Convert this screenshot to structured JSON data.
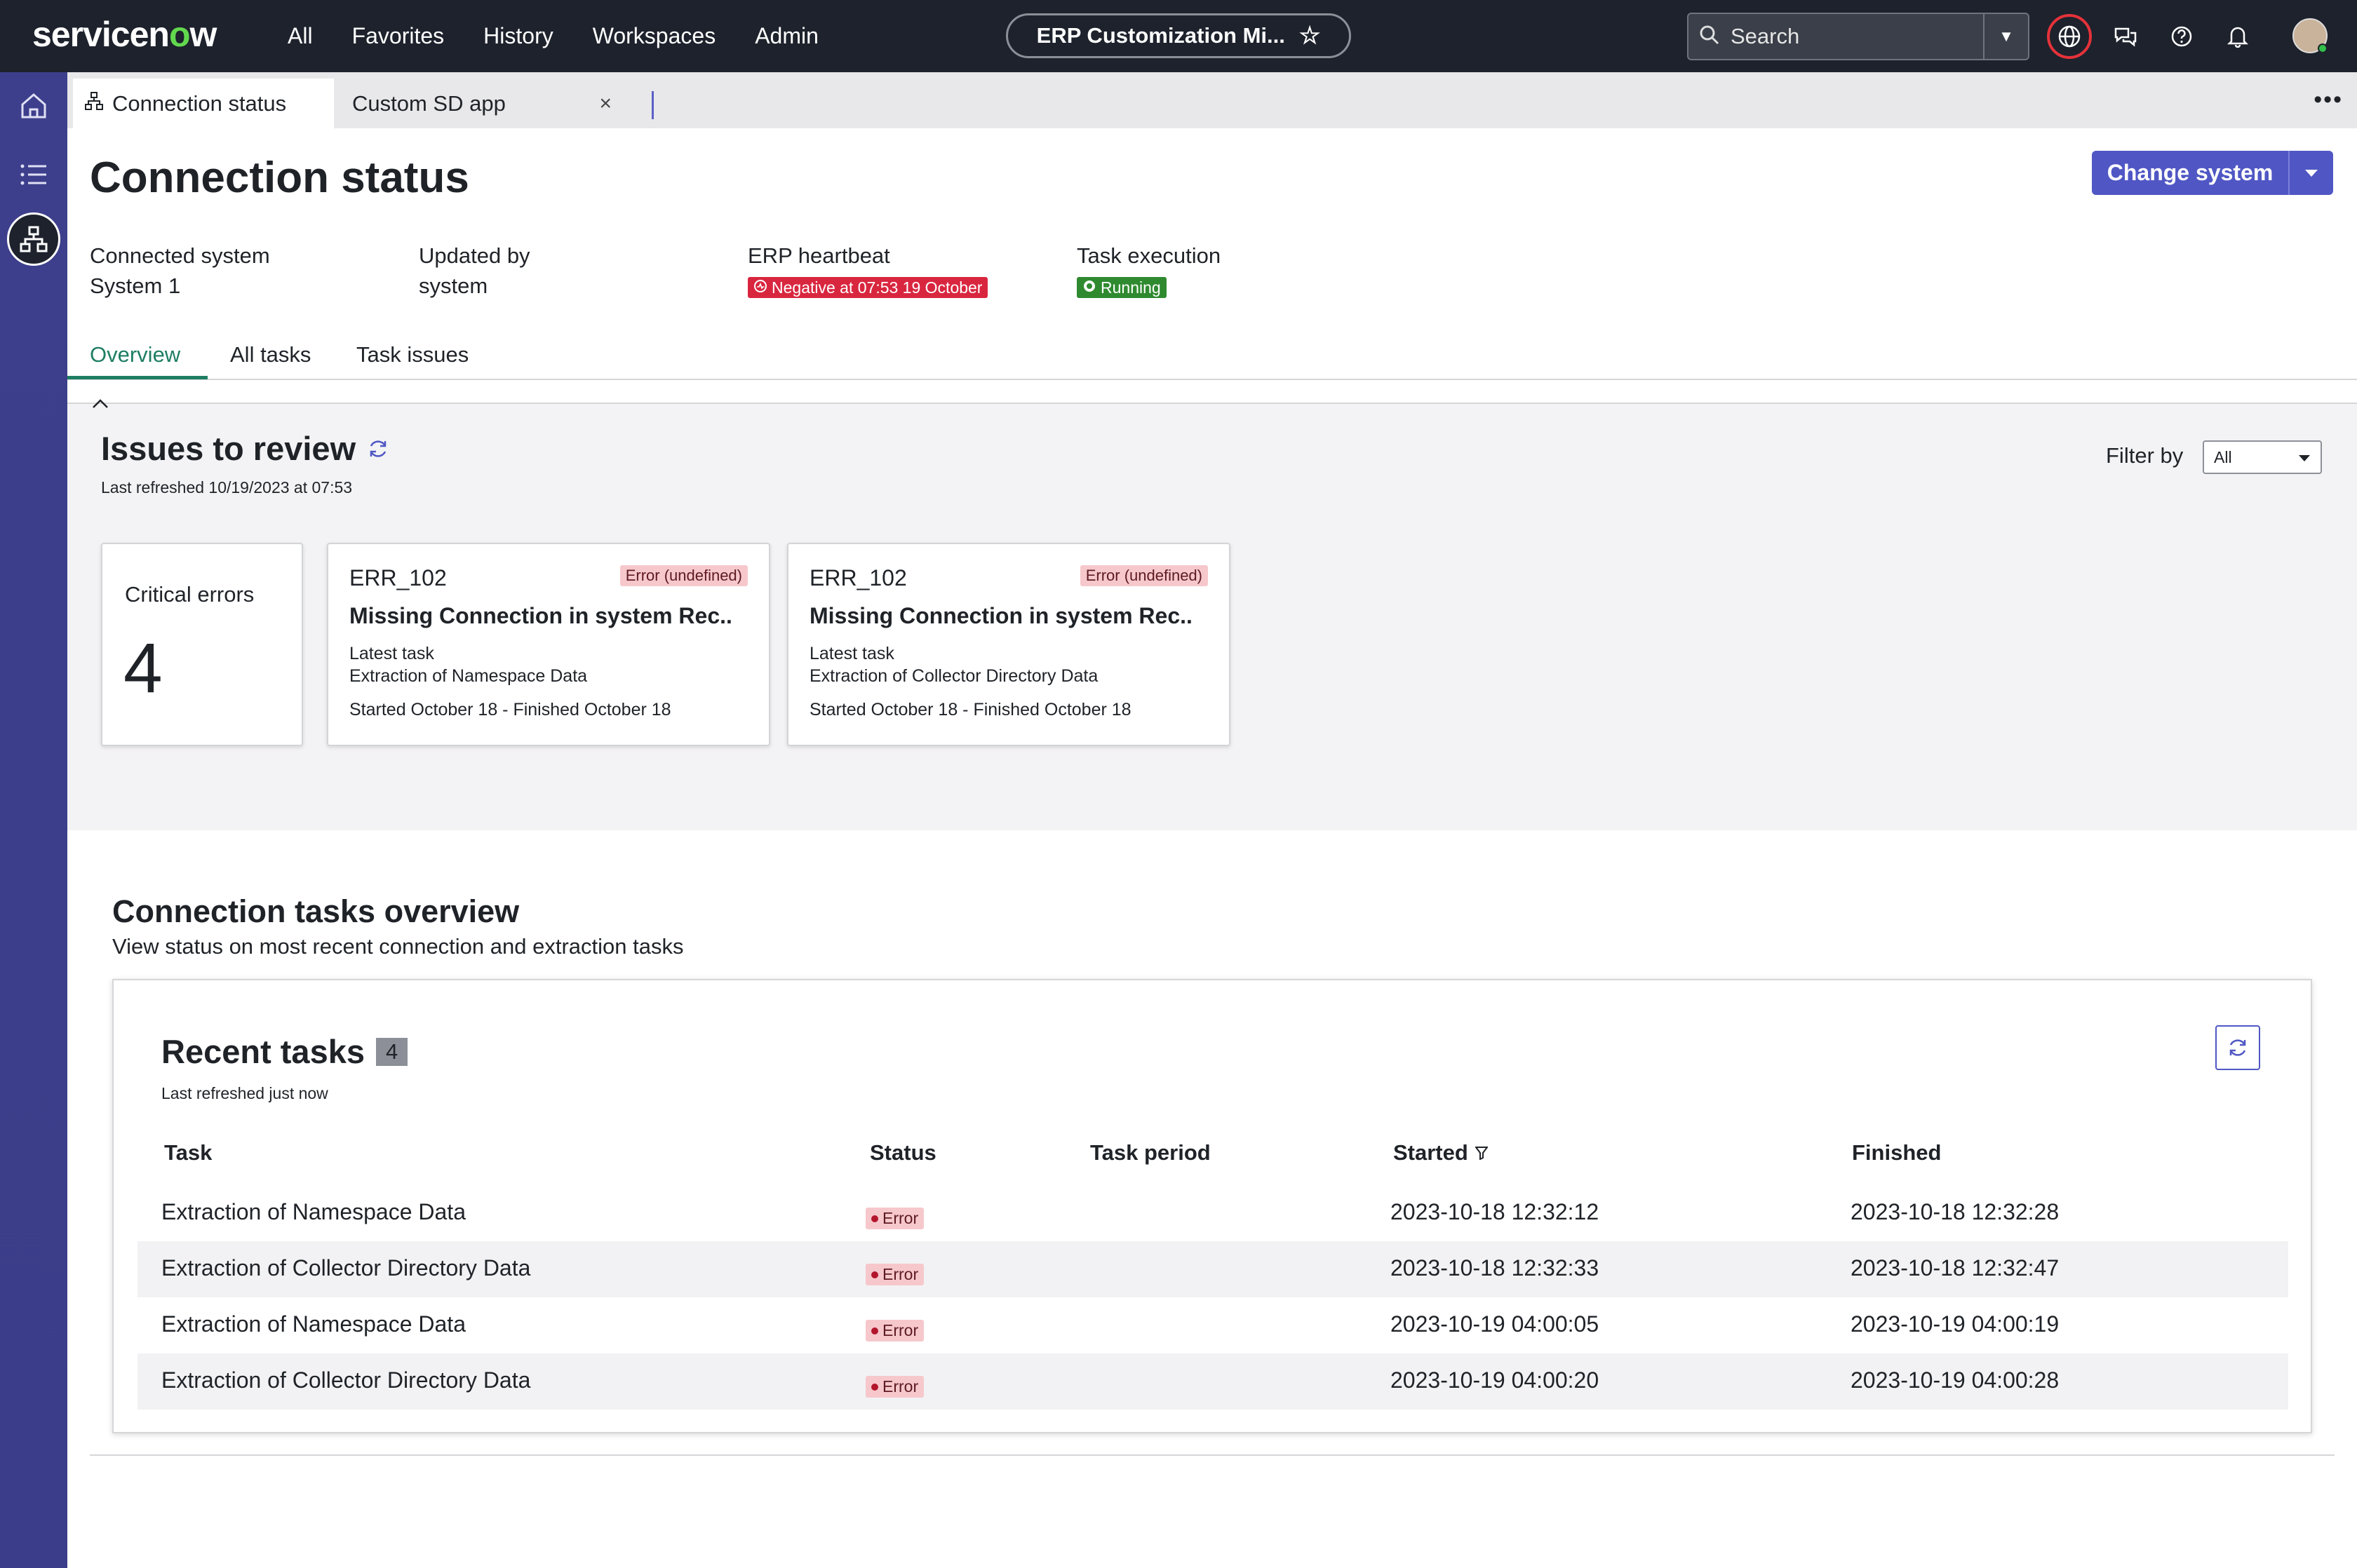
{
  "brand": {
    "logo_text_prefix": "servicen",
    "logo_text_o": "o",
    "logo_text_suffix": "w"
  },
  "topnav": [
    "All",
    "Favorites",
    "History",
    "Workspaces",
    "Admin"
  ],
  "workspace_pill": {
    "label": "ERP Customization Mi..."
  },
  "search": {
    "placeholder": "Search"
  },
  "tabs": [
    {
      "label": "Connection status"
    },
    {
      "label": "Custom SD app"
    }
  ],
  "page": {
    "title": "Connection status",
    "change_button": "Change system"
  },
  "meta": {
    "connected_label": "Connected system",
    "connected_value": "System 1",
    "updated_label": "Updated by",
    "updated_value": "system",
    "heartbeat_label": "ERP heartbeat",
    "heartbeat_value": "Negative at 07:53 19 October",
    "task_label": "Task execution",
    "task_value": "Running"
  },
  "page_tabs": [
    "Overview",
    "All tasks",
    "Task issues"
  ],
  "issues": {
    "title": "Issues to review",
    "subtitle": "Last refreshed 10/19/2023 at 07:53",
    "filter_label": "Filter by",
    "filter_value": "All",
    "critical_label": "Critical errors",
    "critical_count": "4",
    "cards": [
      {
        "code": "ERR_102",
        "tag": "Error (undefined)",
        "title": "Missing Connection in system Rec..",
        "latest": "Latest task",
        "task": "Extraction of Namespace Data",
        "dates": "Started October 18 - Finished October 18"
      },
      {
        "code": "ERR_102",
        "tag": "Error (undefined)",
        "title": "Missing Connection in system Rec..",
        "latest": "Latest task",
        "task": "Extraction of Collector Directory Data",
        "dates": "Started October 18 - Finished October 18"
      }
    ]
  },
  "overview": {
    "title": "Connection tasks overview",
    "subtitle": "View status on most recent connection and extraction tasks",
    "recent_title": "Recent tasks",
    "recent_count": "4",
    "recent_sub": "Last refreshed just now",
    "columns": [
      "Task",
      "Status",
      "Task period",
      "Started",
      "Finished"
    ],
    "rows": [
      {
        "task": "Extraction of Namespace Data",
        "status": "Error",
        "period": "",
        "started": "2023-10-18 12:32:12",
        "finished": "2023-10-18 12:32:28"
      },
      {
        "task": "Extraction of Collector Directory Data",
        "status": "Error",
        "period": "",
        "started": "2023-10-18 12:32:33",
        "finished": "2023-10-18 12:32:47"
      },
      {
        "task": "Extraction of Namespace Data",
        "status": "Error",
        "period": "",
        "started": "2023-10-19 04:00:05",
        "finished": "2023-10-19 04:00:19"
      },
      {
        "task": "Extraction of Collector Directory Data",
        "status": "Error",
        "period": "",
        "started": "2023-10-19 04:00:20",
        "finished": "2023-10-19 04:00:28"
      }
    ]
  },
  "colors": {
    "accent": "#5057c4",
    "topbar": "#1d222c",
    "rail": "#3d3f8c",
    "error": "#d9263f",
    "running": "#2f8a2f",
    "active_tab": "#1e7e63"
  }
}
